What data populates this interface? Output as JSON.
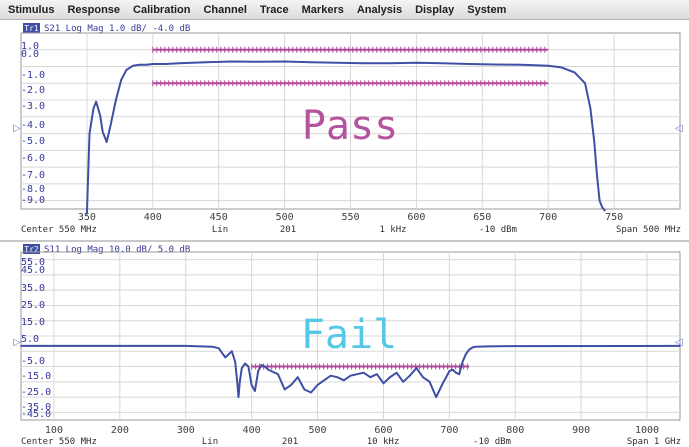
{
  "menu": [
    "Stimulus",
    "Response",
    "Calibration",
    "Channel",
    "Trace",
    "Markers",
    "Analysis",
    "Display",
    "System"
  ],
  "colors": {
    "trace": "#3f4fa6",
    "limit": "#b0489a",
    "pass_text": "#b4549e",
    "fail_text": "#55c8e6",
    "grid": "#d8d8d8",
    "scale_text": "#35399a",
    "tr_badge": "#3f4fa6"
  },
  "top": {
    "trace_badge": "Tr1",
    "trace_header": "S21 Log Mag 1.0 dB/ -4.0 dB",
    "status_overlay": "Pass",
    "y_tick_labels": [
      "1.0",
      "0.0",
      "-1.0",
      "-2.0",
      "-3.0",
      "-4.0",
      "-5.0",
      "-6.0",
      "-7.0",
      "-8.0",
      "-9.0"
    ],
    "x_tick_labels": [
      "350",
      "400",
      "450",
      "500",
      "550",
      "600",
      "650",
      "700",
      "750"
    ],
    "footer": {
      "center": "Center 550 MHz",
      "sweep": "Lin",
      "points": "201",
      "ifbw": "1 kHz",
      "power": "-10 dBm",
      "span": "Span 500 MHz"
    }
  },
  "bottom": {
    "trace_badge": "Tr2",
    "trace_header": "S11 Log Mag 10.0 dB/ 5.0 dB",
    "status_overlay": "Fail",
    "y_tick_labels": [
      "55.0",
      "45.0",
      "35.0",
      "25.0",
      "15.0",
      "5.0",
      "-5.0",
      "-15.0",
      "-25.0",
      "-35.0",
      "-45.0"
    ],
    "x_tick_labels": [
      "100",
      "200",
      "300",
      "400",
      "500",
      "600",
      "700",
      "800",
      "900",
      "1000"
    ],
    "footer": {
      "center": "Center 550 MHz",
      "sweep": "Lin",
      "points": "201",
      "ifbw": "10 kHz",
      "power": "-10 dBm",
      "span": "Span 1 GHz"
    }
  },
  "chart_data": [
    {
      "type": "line",
      "title": "S21 Log Mag 1.0 dB/ -4.0 dB",
      "xlabel": "MHz",
      "ylabel": "dB",
      "xlim": [
        300,
        800
      ],
      "ylim": [
        -9.5,
        1.0
      ],
      "grid": true,
      "series": [
        {
          "name": "S21",
          "x": [
            350,
            352,
            355,
            357,
            360,
            362,
            365,
            368,
            372,
            376,
            380,
            385,
            390,
            395,
            400,
            410,
            420,
            440,
            460,
            480,
            500,
            520,
            540,
            560,
            580,
            600,
            620,
            640,
            660,
            680,
            700,
            710,
            720,
            728,
            732,
            735,
            737,
            739,
            741,
            743
          ],
          "y": [
            -9.8,
            -5.0,
            -3.5,
            -3.1,
            -3.9,
            -4.9,
            -5.5,
            -4.5,
            -3.0,
            -1.8,
            -1.2,
            -0.95,
            -0.9,
            -0.9,
            -0.85,
            -0.85,
            -0.8,
            -0.75,
            -0.7,
            -0.72,
            -0.7,
            -0.75,
            -0.78,
            -0.8,
            -0.8,
            -0.78,
            -0.8,
            -0.85,
            -0.88,
            -0.9,
            -0.95,
            -1.05,
            -1.35,
            -2.0,
            -3.5,
            -5.5,
            -7.5,
            -9.0,
            -9.4,
            -9.6
          ]
        }
      ],
      "limits": [
        {
          "name": "upper",
          "x": [
            400,
            700
          ],
          "y": [
            0.0,
            0.0
          ]
        },
        {
          "name": "lower",
          "x": [
            400,
            700
          ],
          "y": [
            -2.0,
            -2.0
          ]
        }
      ]
    },
    {
      "type": "line",
      "title": "S11 Log Mag 10.0 dB/ 5.0 dB",
      "xlabel": "MHz",
      "ylabel": "dB",
      "xlim": [
        50,
        1050
      ],
      "ylim": [
        -50,
        60
      ],
      "grid": true,
      "series": [
        {
          "name": "S11",
          "x": [
            50,
            300,
            340,
            350,
            355,
            360,
            365,
            370,
            375,
            378,
            380,
            382,
            385,
            390,
            395,
            400,
            405,
            410,
            415,
            420,
            425,
            430,
            440,
            450,
            460,
            470,
            480,
            490,
            500,
            510,
            520,
            530,
            540,
            550,
            560,
            570,
            580,
            590,
            600,
            610,
            620,
            630,
            640,
            650,
            660,
            670,
            680,
            690,
            700,
            705,
            710,
            715,
            720,
            725,
            730,
            735,
            740,
            760,
            800,
            1050
          ],
          "y": [
            -1.5,
            -1.5,
            -2.0,
            -3.0,
            -6.0,
            -9.0,
            -7.0,
            -5.0,
            -12.0,
            -25.0,
            -35.0,
            -25.0,
            -16.0,
            -13.0,
            -15.0,
            -27.0,
            -31.0,
            -18.0,
            -14.0,
            -15.0,
            -17.0,
            -18.0,
            -20.0,
            -30.0,
            -27.0,
            -22.0,
            -30.0,
            -32.0,
            -27.0,
            -24.0,
            -21.0,
            -22.0,
            -24.0,
            -21.0,
            -20.0,
            -19.0,
            -22.0,
            -20.0,
            -26.0,
            -22.0,
            -19.0,
            -25.0,
            -21.0,
            -16.0,
            -22.0,
            -25.0,
            -35.0,
            -26.0,
            -18.0,
            -17.0,
            -19.0,
            -20.0,
            -12.0,
            -7.0,
            -4.0,
            -2.5,
            -2.0,
            -1.8,
            -1.6,
            -1.5
          ]
        }
      ],
      "limits": [
        {
          "name": "upper",
          "x": [
            400,
            730
          ],
          "y": [
            -15.0,
            -15.0
          ]
        }
      ]
    }
  ]
}
